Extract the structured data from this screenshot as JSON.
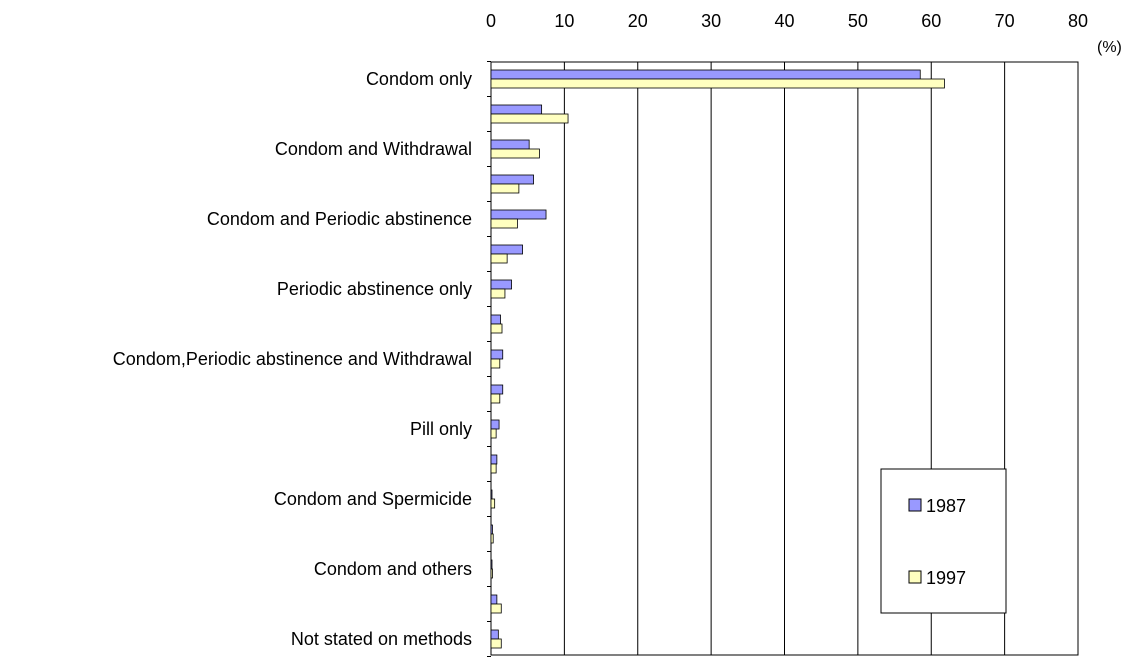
{
  "chart_data": {
    "type": "bar",
    "orientation": "horizontal",
    "unit_label": "(%)",
    "xlim": [
      0,
      80
    ],
    "x_ticks": [
      "0",
      "10",
      "20",
      "30",
      "40",
      "50",
      "60",
      "70",
      "80"
    ],
    "grid": "vertical",
    "legend_position": "bottom-right",
    "categories": [
      "Condom only",
      "",
      "Condom and Withdrawal",
      "",
      "Condom and Periodic abstinence",
      "",
      "Periodic abstinence only",
      "",
      "Condom,Periodic abstinence and Withdrawal",
      "",
      "Pill only",
      "",
      "Condom and Spermicide",
      "",
      "Condom and others",
      "",
      "Not stated on methods"
    ],
    "series": [
      {
        "name": "1987",
        "color": "#9999ff",
        "values": [
          58.5,
          6.9,
          5.2,
          5.8,
          7.5,
          4.3,
          2.8,
          1.3,
          1.6,
          1.6,
          1.1,
          0.8,
          0.0,
          0.2,
          0.0,
          0.8,
          1.0
        ]
      },
      {
        "name": "1997",
        "color": "#ffffc0",
        "values": [
          61.8,
          10.5,
          6.6,
          3.8,
          3.6,
          2.2,
          1.9,
          1.5,
          1.2,
          1.2,
          0.7,
          0.7,
          0.5,
          0.3,
          0.2,
          1.4,
          1.4
        ]
      }
    ]
  }
}
